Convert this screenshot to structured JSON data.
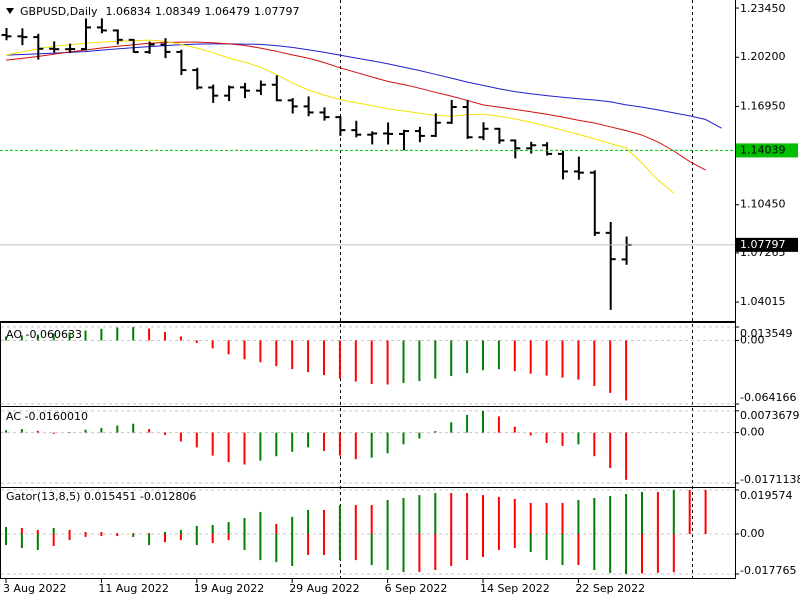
{
  "chart_data": [
    {
      "type": "ohlc",
      "title": "GBPUSD,Daily",
      "categories": [
        "3 Aug 2022",
        null,
        null,
        null,
        null,
        null,
        "11 Aug 2022",
        null,
        null,
        null,
        null,
        null,
        "19 Aug 2022",
        null,
        null,
        null,
        null,
        null,
        "29 Aug 2022",
        null,
        null,
        null,
        null,
        null,
        "6 Sep 2022",
        null,
        null,
        null,
        null,
        null,
        "14 Sep 2022",
        null,
        null,
        null,
        null,
        null,
        "22 Sep 2022",
        null,
        null,
        null,
        null,
        null,
        null,
        null,
        null,
        null
      ],
      "open": [
        1.2167,
        1.2158,
        1.2153,
        1.2076,
        1.2073,
        1.2074,
        1.2217,
        1.2197,
        1.2135,
        1.2054,
        1.2104,
        1.2055,
        1.1935,
        1.182,
        1.1766,
        1.1821,
        1.1799,
        1.1838,
        1.1735,
        1.1695,
        1.1655,
        1.1624,
        1.1538,
        1.1508,
        1.1516,
        1.1513,
        1.1532,
        1.15,
        1.1587,
        1.1691,
        1.1491,
        1.1547,
        1.147,
        1.1418,
        1.1438,
        1.1381,
        1.1265,
        1.1257,
        1.0859,
        1.06834,
        null,
        null,
        null,
        null,
        null,
        null
      ],
      "high": [
        1.2213,
        1.2211,
        1.2175,
        1.2125,
        1.211,
        1.2276,
        1.2277,
        1.2204,
        1.214,
        1.2124,
        1.2146,
        1.207,
        1.195,
        1.1839,
        1.1833,
        1.185,
        1.1866,
        1.19,
        1.175,
        1.1761,
        1.1689,
        1.163,
        1.16,
        1.153,
        1.1589,
        1.154,
        1.156,
        1.1649,
        1.1738,
        1.1738,
        1.159,
        1.1553,
        1.1476,
        1.1461,
        1.1458,
        1.1401,
        1.1363,
        1.1273,
        1.0931,
        1.08349,
        null,
        null,
        null,
        null,
        null,
        null
      ],
      "low": [
        1.2132,
        1.21,
        1.2004,
        1.2051,
        1.2049,
        1.2064,
        1.2178,
        1.2105,
        1.205,
        1.2042,
        1.2014,
        1.1902,
        1.1807,
        1.1718,
        1.173,
        1.175,
        1.177,
        1.173,
        1.1648,
        1.163,
        1.1601,
        1.15,
        1.149,
        1.1444,
        1.1443,
        1.1405,
        1.1458,
        1.1493,
        1.1579,
        1.148,
        1.1472,
        1.1448,
        1.1351,
        1.1383,
        1.137,
        1.1212,
        1.121,
        1.0838,
        1.035,
        1.06479,
        null,
        null,
        null,
        null,
        null,
        null
      ],
      "close": [
        1.2158,
        1.2153,
        1.2076,
        1.2073,
        1.2074,
        1.2217,
        1.2197,
        1.2135,
        1.2054,
        1.2104,
        1.2055,
        1.1935,
        1.182,
        1.1766,
        1.1821,
        1.1799,
        1.1838,
        1.1735,
        1.1695,
        1.1655,
        1.1624,
        1.1538,
        1.1508,
        1.1516,
        1.1513,
        1.1532,
        1.15,
        1.1587,
        1.1691,
        1.1491,
        1.1547,
        1.147,
        1.1418,
        1.1438,
        1.1381,
        1.1265,
        1.1257,
        1.0859,
        1.0685,
        1.07797,
        null,
        null,
        null,
        null,
        null,
        null
      ],
      "color": "#000000",
      "series": [
        {
          "color": "#1f1fc8",
          "values": [
            1.2034,
            1.2038,
            1.2042,
            1.2047,
            1.2052,
            1.2057,
            1.2067,
            1.2075,
            1.2083,
            1.209,
            1.2097,
            1.2103,
            1.2107,
            1.2108,
            1.2108,
            1.2107,
            1.2105,
            1.2097,
            1.2085,
            1.207,
            1.2053,
            1.2034,
            1.2015,
            1.1996,
            1.1977,
            1.1955,
            1.1932,
            1.1907,
            1.1882,
            1.1856,
            1.1834,
            1.1812,
            1.1793,
            1.1778,
            1.1766,
            1.1755,
            1.1745,
            1.1737,
            1.1725,
            1.1705,
            1.169,
            1.1672,
            1.1652,
            1.1632,
            1.1608,
            1.1551
          ]
        },
        {
          "color": "#d01010",
          "values": [
            1.2001,
            1.2012,
            1.2025,
            1.204,
            1.2055,
            1.2068,
            1.2081,
            1.2092,
            1.2103,
            1.2112,
            1.2117,
            1.212,
            1.212,
            1.2115,
            1.2108,
            1.2098,
            1.208,
            1.206,
            1.2035,
            1.2014,
            1.1985,
            1.195,
            1.192,
            1.189,
            1.186,
            1.184,
            1.1815,
            1.1788,
            1.1763,
            1.1735,
            1.1705,
            1.169,
            1.1675,
            1.166,
            1.1643,
            1.1625,
            1.1604,
            1.1585,
            1.156,
            1.1535,
            1.1505,
            1.146,
            1.14,
            1.133,
            1.1274,
            null
          ]
        },
        {
          "color": "#f2e200",
          "values": [
            1.2034,
            1.2055,
            1.2075,
            1.2092,
            1.2103,
            1.2112,
            1.212,
            1.2125,
            1.213,
            1.2133,
            1.2125,
            1.2105,
            1.2081,
            1.205,
            1.2015,
            1.1988,
            1.1955,
            1.1905,
            1.185,
            1.1803,
            1.177,
            1.174,
            1.172,
            1.17,
            1.168,
            1.1665,
            1.165,
            1.1636,
            1.163,
            1.164,
            1.1644,
            1.163,
            1.1612,
            1.159,
            1.1565,
            1.1538,
            1.151,
            1.148,
            1.145,
            1.142,
            1.132,
            1.121,
            1.1122,
            null,
            null,
            null
          ]
        }
      ],
      "ylim": [
        1.0283,
        1.2385
      ],
      "yticks": [
        {
          "value": 1.2345,
          "label": "1.23450"
        },
        {
          "value": 1.202,
          "label": "1.20200"
        },
        {
          "value": 1.1695,
          "label": "1.16950"
        },
        {
          "value": 1.1045,
          "label": "1.10450"
        },
        1.07265,
        1.04015
      ],
      "hline": {
        "value": 1.14039,
        "color": "#00c000"
      },
      "bid_line_color": "#c0c0c0"
    },
    {
      "type": "ao",
      "label": "AO -0.060633",
      "values": [
        0.004,
        0.005,
        0.006,
        0.007,
        0.008,
        0.01,
        0.0118,
        0.013,
        0.013549,
        0.012,
        0.0085,
        0.004,
        -0.0025,
        -0.008,
        -0.014,
        -0.019,
        -0.022,
        -0.026,
        -0.029,
        -0.032,
        -0.035,
        -0.0385,
        -0.0415,
        -0.044,
        -0.0445,
        -0.043,
        -0.041,
        -0.0385,
        -0.036,
        -0.033,
        -0.03,
        -0.029,
        -0.031,
        -0.0335,
        -0.0355,
        -0.0375,
        -0.0395,
        -0.046,
        -0.053,
        -0.060633
      ],
      "up_color": "#008000",
      "down_color": "#ff0000",
      "ylim": [
        -0.0642,
        0.0136
      ],
      "yticks": [
        0.013549,
        {
          "value": 0,
          "label": "0.00"
        },
        -0.064166
      ],
      "grid": true
    },
    {
      "type": "ao",
      "label": "AC -0.0160010",
      "values": [
        0.0008,
        0.0012,
        0.0006,
        -0.0004,
        0.0002,
        0.001,
        0.0016,
        0.0024,
        0.003,
        0.0012,
        -0.0008,
        -0.003,
        -0.005,
        -0.0078,
        -0.01,
        -0.0108,
        -0.0095,
        -0.008,
        -0.0065,
        -0.005,
        -0.0062,
        -0.0078,
        -0.009,
        -0.0085,
        -0.007,
        -0.004,
        -0.002,
        0.0005,
        0.0035,
        0.006,
        0.0073679,
        0.0055,
        0.002,
        -0.001,
        -0.0035,
        -0.0045,
        -0.004,
        -0.008,
        -0.012,
        -0.016001
      ],
      "up_color": "#008000",
      "down_color": "#ff0000",
      "ylim": [
        -0.0181,
        0.008
      ],
      "yticks": [
        0.0073679,
        {
          "value": 0,
          "label": "0.00"
        },
        -0.0171138
      ],
      "grid": true
    },
    {
      "type": "gator",
      "label": "Gator(13,8,5) 0.015451 -0.012806",
      "upper": [
        0.0031,
        0.0027,
        0.0018,
        0.0027,
        0.0018,
        0.0009,
        0.0009,
        0.0004,
        0.0004,
        0.0004,
        0.0009,
        0.0018,
        0.0036,
        0.004,
        0.0053,
        0.0071,
        0.0098,
        0.0045,
        0.0076,
        0.0107,
        0.0107,
        0.0129,
        0.0129,
        0.0129,
        0.0151,
        0.016,
        0.0173,
        0.0182,
        0.0182,
        0.0182,
        0.0173,
        0.0165,
        0.0156,
        0.0138,
        0.0138,
        0.0138,
        0.0151,
        0.016,
        0.0169,
        0.0178,
        0.0187,
        0.0187,
        0.0196,
        0.0196,
        0.019574,
        null
      ],
      "lower": [
        -0.0049,
        -0.0062,
        -0.0071,
        -0.0053,
        -0.0027,
        -0.0013,
        -0.0009,
        -0.0009,
        -0.0013,
        -0.0049,
        -0.0036,
        -0.0027,
        -0.0049,
        -0.004,
        -0.0027,
        -0.0071,
        -0.0116,
        -0.0125,
        -0.0142,
        -0.0093,
        -0.0093,
        -0.0116,
        -0.0116,
        -0.0138,
        -0.016,
        -0.0169,
        -0.0169,
        -0.016,
        -0.0142,
        -0.0116,
        -0.0102,
        -0.0071,
        -0.0062,
        -0.008,
        -0.0116,
        -0.0138,
        -0.0138,
        -0.016,
        -0.0173,
        -0.017765,
        -0.0175,
        -0.0172,
        -0.017,
        null,
        null,
        null
      ],
      "up_color": "#008000",
      "down_color": "#ff0000",
      "ylim": [
        -0.0191,
        0.02
      ],
      "yticks": [
        0.019574,
        {
          "value": 0,
          "label": "0.00"
        },
        -0.017765
      ],
      "grid": true
    }
  ]
}
